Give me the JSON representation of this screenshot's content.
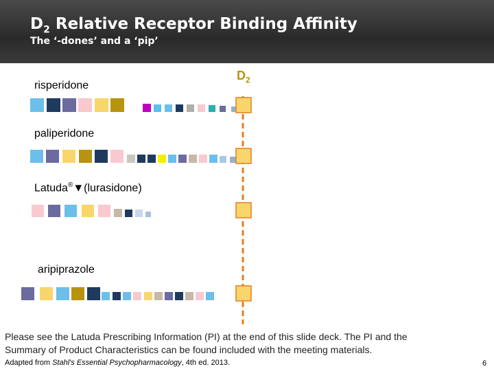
{
  "header": {
    "title_main": "D",
    "title_sub": "2",
    "title_rest": "Relative Receptor Binding Affinity",
    "subtitle": "The ‘-dones’ and a ‘pip’"
  },
  "receptor": {
    "main": "D",
    "sub": "2"
  },
  "drugs": [
    {
      "label": "risperidone"
    },
    {
      "label": "paliperidone"
    },
    {
      "label": "Latuda",
      "mark": "®",
      "symbol": "▼",
      "generic": "(lurasidone)"
    },
    {
      "label": "aripiprazole"
    }
  ],
  "note": {
    "line1": "Please see the Latuda Prescribing Information (PI) at the end of this slide deck. The PI and the",
    "line2": "Summary of Product Characteristics can be found included with the meeting materials."
  },
  "footer": {
    "prefix": "Adapted from ",
    "source": "Stahl's Essential Psychopharmacology",
    "suffix": ", 4th ed. 2013.",
    "page": "6"
  }
}
